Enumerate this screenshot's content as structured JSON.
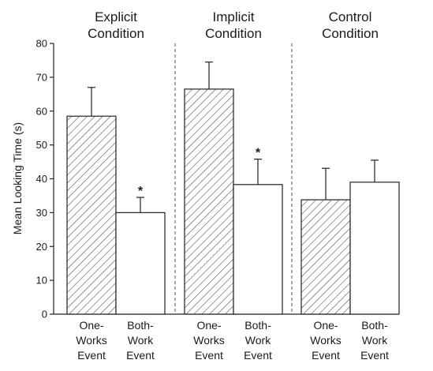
{
  "chart_data": {
    "type": "bar",
    "title": "",
    "ylabel": "Mean Looking Time (s)",
    "xlabel": "",
    "ylim": [
      0,
      80
    ],
    "yticks": [
      0,
      10,
      20,
      30,
      40,
      50,
      60,
      70,
      80
    ],
    "groups": [
      {
        "title_line1": "Explicit",
        "title_line2": "Condition",
        "bars": [
          {
            "label_lines": [
              "One-",
              "Works",
              "Event"
            ],
            "value": 58.5,
            "error": 8.5,
            "pattern": "hatched",
            "significant": false
          },
          {
            "label_lines": [
              "Both-",
              "Work",
              "Event"
            ],
            "value": 30.0,
            "error": 4.5,
            "pattern": "open",
            "significant": true
          }
        ]
      },
      {
        "title_line1": "Implicit",
        "title_line2": "Condition",
        "bars": [
          {
            "label_lines": [
              "One-",
              "Works",
              "Event"
            ],
            "value": 66.5,
            "error": 8.0,
            "pattern": "hatched",
            "significant": false
          },
          {
            "label_lines": [
              "Both-",
              "Work",
              "Event"
            ],
            "value": 38.3,
            "error": 7.5,
            "pattern": "open",
            "significant": true
          }
        ]
      },
      {
        "title_line1": "Control",
        "title_line2": "Condition",
        "bars": [
          {
            "label_lines": [
              "One-",
              "Works",
              "Event"
            ],
            "value": 33.8,
            "error": 9.3,
            "pattern": "hatched",
            "significant": false
          },
          {
            "label_lines": [
              "Both-",
              "Work",
              "Event"
            ],
            "value": 39.0,
            "error": 6.5,
            "pattern": "open",
            "significant": false
          }
        ]
      }
    ],
    "significance_marker": "*",
    "colors": {
      "axis": "#222222",
      "bar_fill": "#ffffff",
      "hatch": "#444444"
    }
  }
}
